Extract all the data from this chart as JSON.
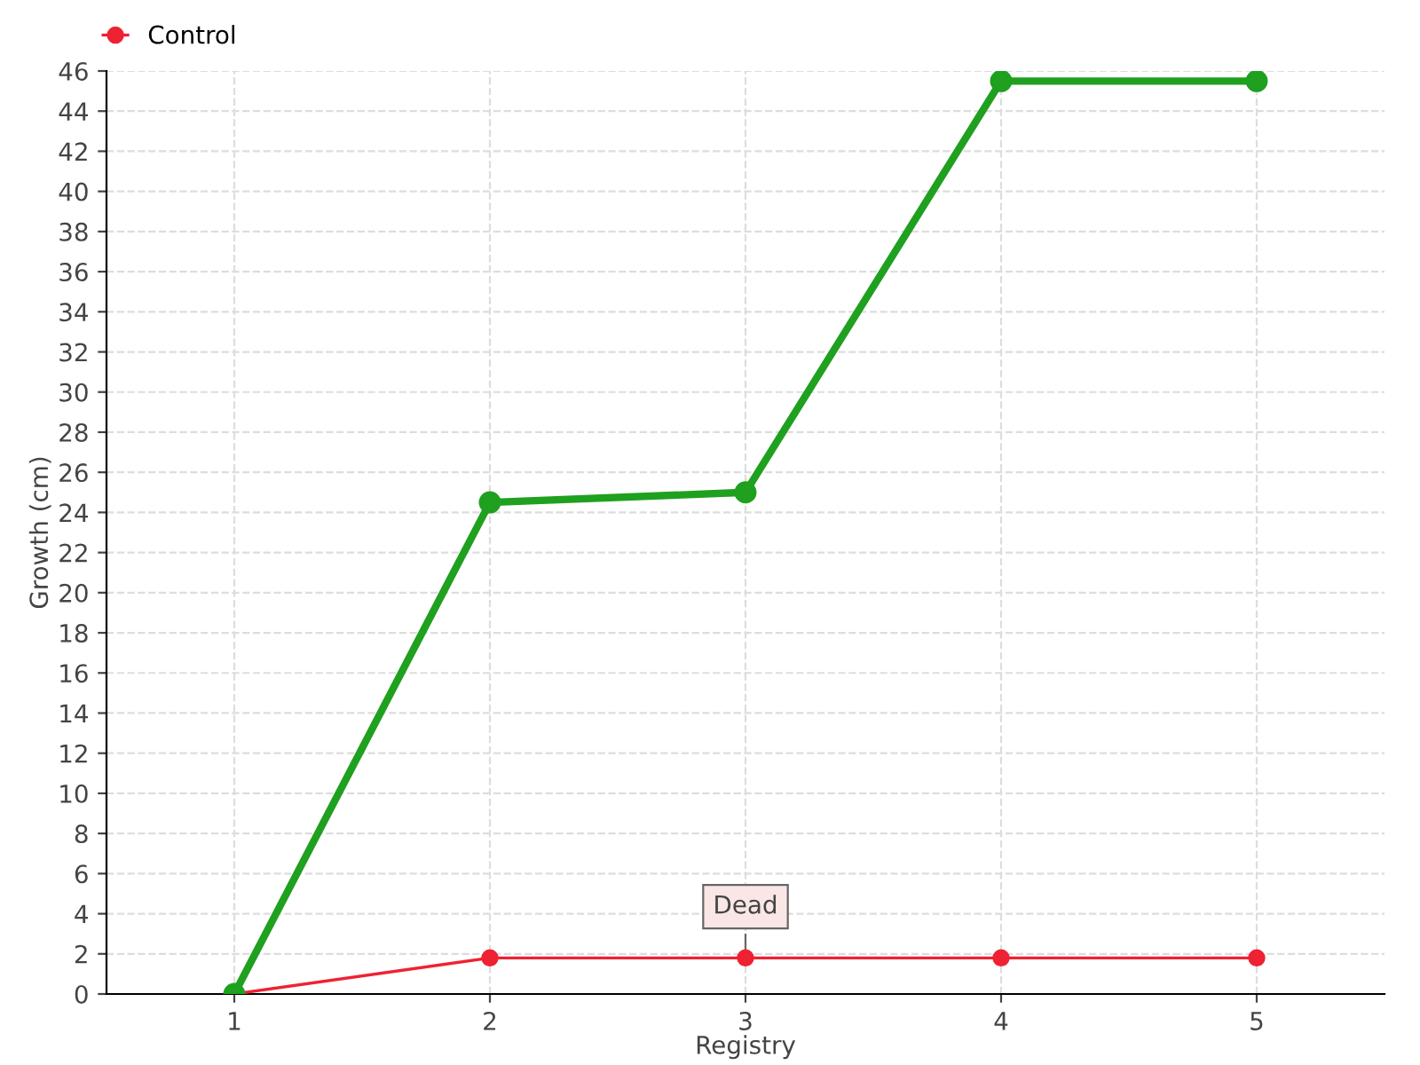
{
  "chart_data": {
    "type": "line",
    "xlabel": "Registry",
    "ylabel": "Growth (cm)",
    "x": [
      1,
      2,
      3,
      4,
      5
    ],
    "series": [
      {
        "color": "#1fa01f",
        "values": [
          0,
          24.5,
          25,
          45.5,
          45.5
        ]
      },
      {
        "name": "Control",
        "color": "#ee2233",
        "values": [
          0,
          1.8,
          1.8,
          1.8,
          1.8
        ]
      }
    ],
    "annotations": [
      {
        "text": "Dead",
        "x": 3,
        "y": 1.8
      }
    ],
    "xlim": [
      0.5,
      5.5
    ],
    "xticks": [
      1,
      2,
      3,
      4,
      5
    ],
    "ylim": [
      0,
      46
    ],
    "yticks": [
      0,
      2,
      4,
      6,
      8,
      10,
      12,
      14,
      16,
      18,
      20,
      22,
      24,
      26,
      28,
      30,
      32,
      34,
      36,
      38,
      40,
      42,
      44,
      46
    ],
    "grid": true,
    "legend": "top left",
    "marker": "circle",
    "line_style": "solid"
  }
}
